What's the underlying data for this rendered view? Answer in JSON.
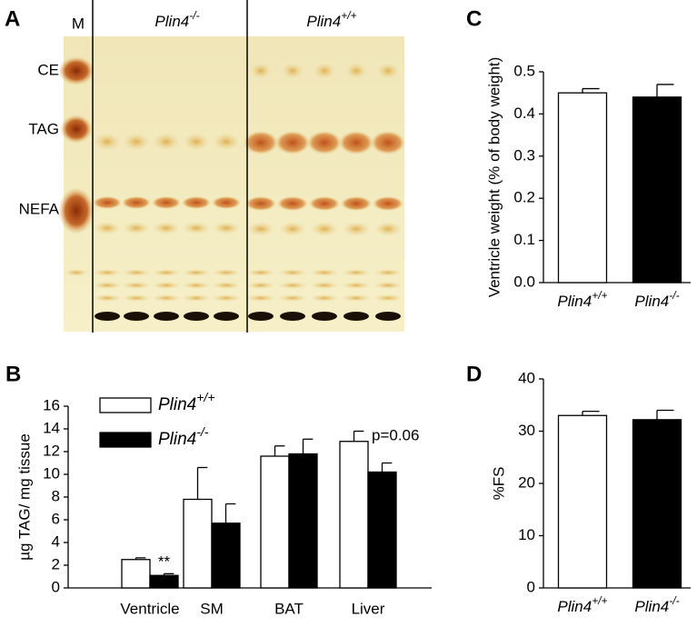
{
  "image_panel": {
    "panel": "A",
    "lane_label": "M",
    "groups": [
      {
        "label": "Plin4",
        "sup": "-/-"
      },
      {
        "label": "Plin4",
        "sup": "+/+"
      }
    ],
    "band_labels": [
      "CE",
      "TAG",
      "NEFA"
    ]
  },
  "chart_data": [
    {
      "type": "bar",
      "panel": "B",
      "ylabel": "µg TAG/ mg tissue",
      "categories": [
        "Ventricle",
        "SM",
        "BAT",
        "Liver"
      ],
      "series": [
        {
          "name": "Plin4",
          "name_sup": "+/+",
          "color": "#ffffff",
          "values": [
            2.5,
            7.8,
            11.6,
            12.9
          ],
          "errors": [
            0.15,
            2.8,
            0.9,
            0.9
          ]
        },
        {
          "name": "Plin4",
          "name_sup": "-/-",
          "color": "#000000",
          "values": [
            1.1,
            5.7,
            11.8,
            10.2
          ],
          "errors": [
            0.15,
            1.7,
            1.3,
            0.8
          ]
        }
      ],
      "ylim": [
        0,
        16
      ],
      "yticks": [
        0,
        2,
        4,
        6,
        8,
        10,
        12,
        14,
        16
      ],
      "annotations": [
        "**",
        "p=0.06"
      ]
    },
    {
      "type": "bar",
      "panel": "C",
      "ylabel": "Ventricle weight (% of body weight)",
      "categories": [
        {
          "label": "Plin4",
          "sup": "+/+"
        },
        {
          "label": "Plin4",
          "sup": "-/-"
        }
      ],
      "colors": [
        "#ffffff",
        "#000000"
      ],
      "values": [
        0.45,
        0.44
      ],
      "errors": [
        0.01,
        0.03
      ],
      "ylim": [
        0,
        0.5
      ],
      "yticks": [
        {
          "value": 0,
          "label": "0.0"
        },
        0.1,
        0.2,
        0.3,
        0.4,
        0.5
      ]
    },
    {
      "type": "bar",
      "panel": "D",
      "ylabel": "%FS",
      "categories": [
        {
          "label": "Plin4",
          "sup": "+/+"
        },
        {
          "label": "Plin4",
          "sup": "-/-"
        }
      ],
      "colors": [
        "#ffffff",
        "#000000"
      ],
      "values": [
        33,
        32.2
      ],
      "errors": [
        0.8,
        1.8
      ],
      "ylim": [
        0,
        40
      ],
      "yticks": [
        0,
        10,
        20,
        30,
        40
      ]
    }
  ]
}
